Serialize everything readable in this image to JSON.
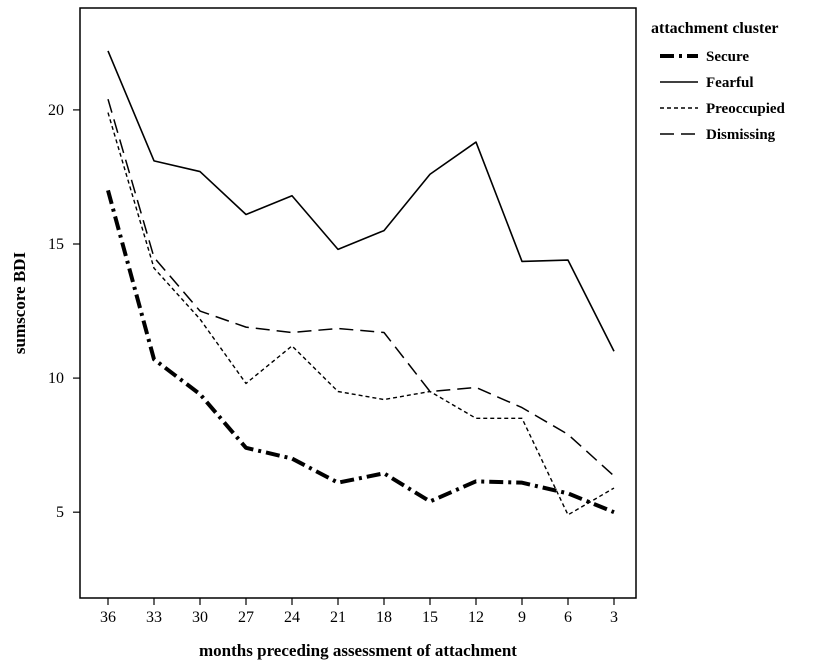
{
  "chart_data": {
    "type": "line",
    "xlabel": "months preceding assessment of attachment",
    "ylabel": "sumscore BDI",
    "categories": [
      "36",
      "33",
      "30",
      "27",
      "24",
      "21",
      "18",
      "15",
      "12",
      "9",
      "6",
      "3"
    ],
    "yticks": [
      5,
      10,
      15,
      20
    ],
    "ylim": [
      1.8,
      23.8
    ],
    "grid": false,
    "legend": {
      "title": "attachment cluster",
      "position": "right"
    },
    "series": [
      {
        "name": "Secure",
        "style": "dash-dot-heavy",
        "values": [
          17.0,
          10.7,
          9.4,
          7.4,
          7.0,
          6.1,
          6.45,
          5.4,
          6.15,
          6.1,
          5.7,
          5.0
        ]
      },
      {
        "name": "Fearful",
        "style": "solid",
        "values": [
          22.2,
          18.1,
          17.7,
          16.1,
          16.8,
          14.8,
          15.5,
          17.6,
          18.8,
          14.35,
          14.4,
          11.0
        ]
      },
      {
        "name": "Preoccupied",
        "style": "short-dash",
        "values": [
          19.9,
          14.1,
          12.2,
          9.8,
          11.2,
          9.5,
          9.2,
          9.5,
          8.5,
          8.5,
          4.9,
          5.9
        ]
      },
      {
        "name": "Dismissing",
        "style": "long-dash",
        "values": [
          20.4,
          14.5,
          12.5,
          11.9,
          11.7,
          11.85,
          11.7,
          9.5,
          9.65,
          8.9,
          7.9,
          6.35
        ]
      }
    ]
  }
}
